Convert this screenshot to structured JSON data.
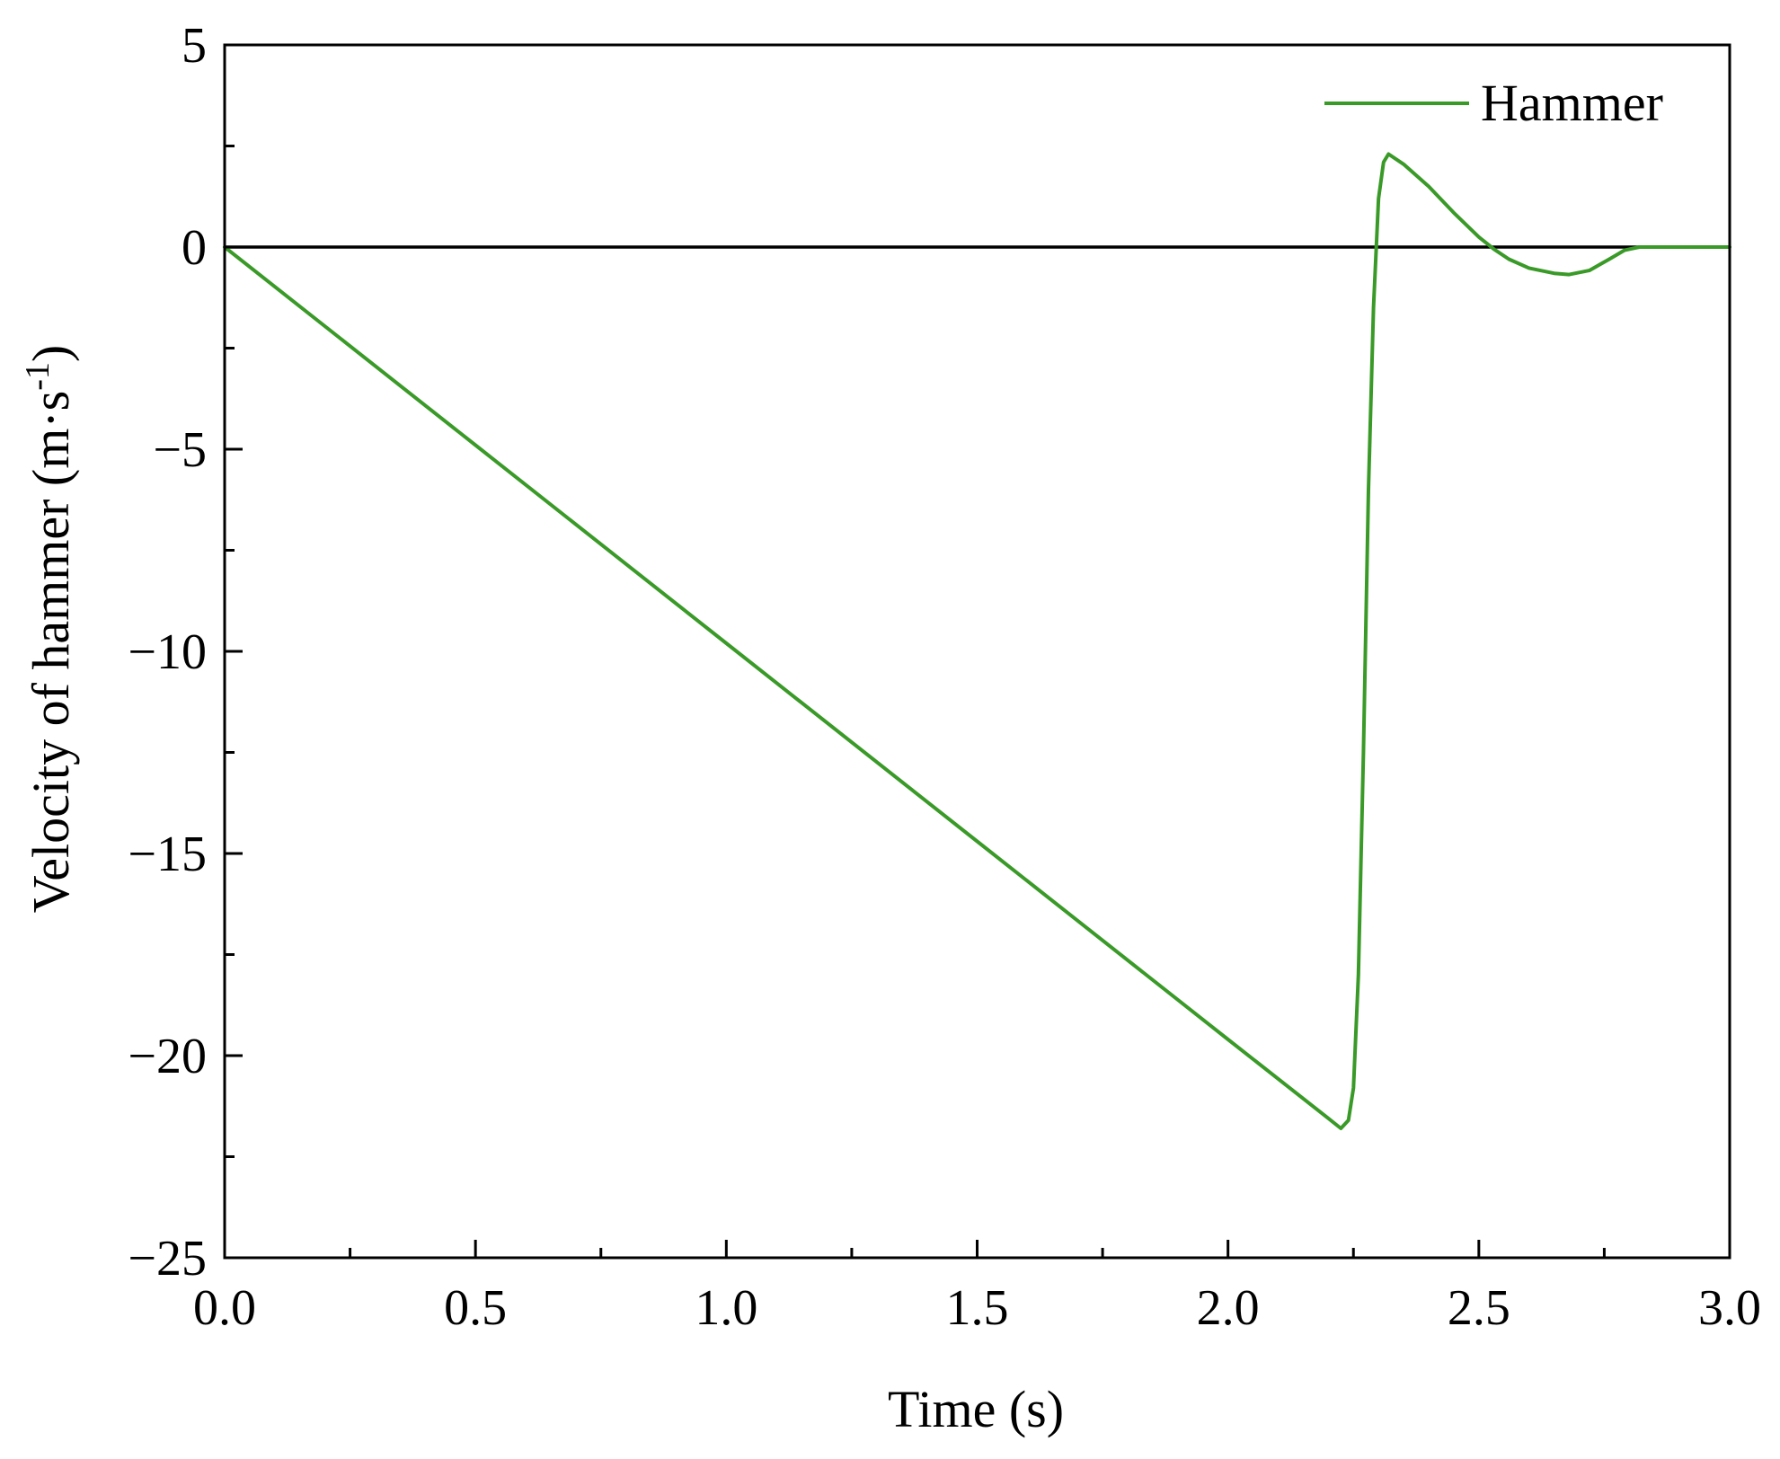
{
  "chart_data": {
    "type": "line",
    "title": "",
    "xlabel": "Time (s)",
    "ylabel": {
      "main": "Velocity of hammer (m·s",
      "superscript": "-1",
      "close": ")"
    },
    "xlim": [
      0.0,
      3.0
    ],
    "ylim": [
      -25,
      5
    ],
    "xticks": [
      0.0,
      0.5,
      1.0,
      1.5,
      2.0,
      2.5,
      3.0
    ],
    "xtick_labels": [
      "0.0",
      "0.5",
      "1.0",
      "1.5",
      "2.0",
      "2.5",
      "3.0"
    ],
    "yticks": [
      5,
      0,
      -5,
      -10,
      -15,
      -20,
      -25
    ],
    "ytick_labels": [
      "5",
      "0",
      "−5",
      "−10",
      "−15",
      "−20",
      "−25"
    ],
    "reference_line_y": 0,
    "grid": false,
    "legend_position": "top-right",
    "series": [
      {
        "name": "Hammer",
        "color": "#3a9a28",
        "points": [
          [
            0.0,
            0.0
          ],
          [
            0.5,
            -4.9
          ],
          [
            1.0,
            -9.8
          ],
          [
            1.5,
            -14.7
          ],
          [
            2.0,
            -19.6
          ],
          [
            2.2,
            -21.55
          ],
          [
            2.225,
            -21.8
          ],
          [
            2.24,
            -21.6
          ],
          [
            2.25,
            -20.8
          ],
          [
            2.26,
            -18.0
          ],
          [
            2.27,
            -12.5
          ],
          [
            2.28,
            -6.0
          ],
          [
            2.29,
            -1.5
          ],
          [
            2.3,
            1.2
          ],
          [
            2.31,
            2.1
          ],
          [
            2.32,
            2.3
          ],
          [
            2.35,
            2.05
          ],
          [
            2.4,
            1.5
          ],
          [
            2.45,
            0.85
          ],
          [
            2.5,
            0.25
          ],
          [
            2.53,
            -0.05
          ],
          [
            2.56,
            -0.3
          ],
          [
            2.6,
            -0.52
          ],
          [
            2.65,
            -0.65
          ],
          [
            2.68,
            -0.68
          ],
          [
            2.72,
            -0.58
          ],
          [
            2.76,
            -0.3
          ],
          [
            2.79,
            -0.08
          ],
          [
            2.82,
            0.0
          ],
          [
            2.9,
            0.0
          ],
          [
            3.0,
            0.0
          ]
        ]
      }
    ]
  }
}
